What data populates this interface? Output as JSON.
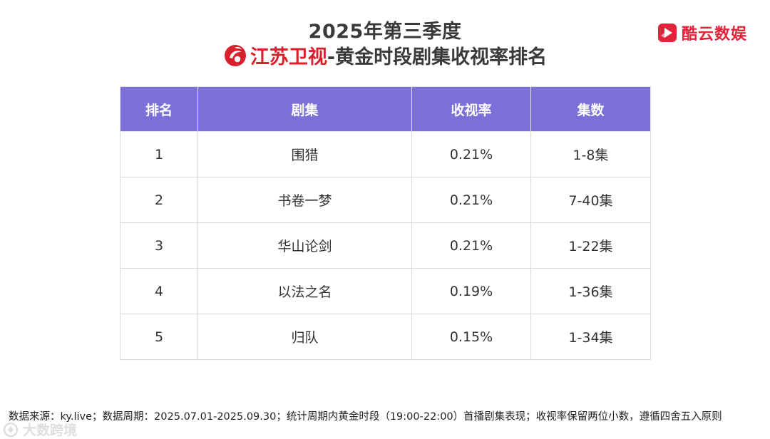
{
  "header": {
    "title_line1": "2025年第三季度",
    "channel_name": "江苏卫视",
    "title_line2_rest": "-黄金时段剧集收视率排名"
  },
  "brand": {
    "name": "酷云数娱",
    "color": "#e2243b"
  },
  "table": {
    "header_color": "#7b6fd8",
    "columns": [
      "排名",
      "剧集",
      "收视率",
      "集数"
    ],
    "rows": [
      {
        "rank": "1",
        "drama": "围猎",
        "rating": "0.21%",
        "episodes": "1-8集"
      },
      {
        "rank": "2",
        "drama": "书卷一梦",
        "rating": "0.21%",
        "episodes": "7-40集"
      },
      {
        "rank": "3",
        "drama": "华山论剑",
        "rating": "0.21%",
        "episodes": "1-22集"
      },
      {
        "rank": "4",
        "drama": "以法之名",
        "rating": "0.19%",
        "episodes": "1-36集"
      },
      {
        "rank": "5",
        "drama": "归队",
        "rating": "0.15%",
        "episodes": "1-34集"
      }
    ]
  },
  "footer": {
    "note": "数据来源：ky.live；数据周期：2025.07.01-2025.09.30；统计周期内黄金时段（19:00-22:00）首播剧集表现；收视率保留两位小数，遵循四舍五入原则",
    "watermark": "大数跨境"
  }
}
